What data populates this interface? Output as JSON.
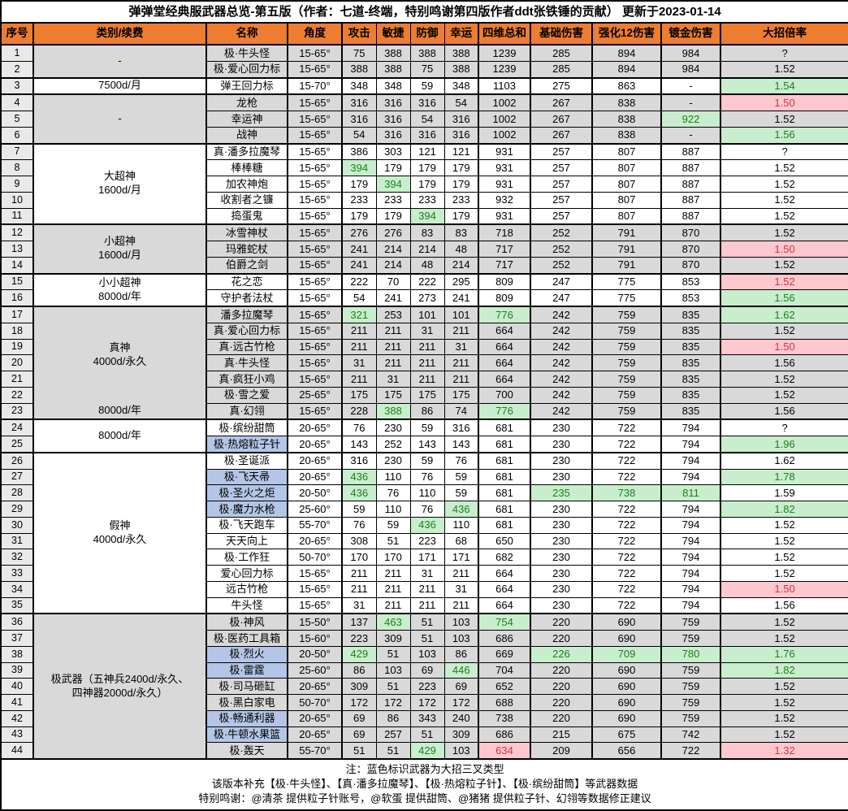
{
  "title": "弹弹堂经典服武器总览-第五版（作者：七道-终端，特别鸣谢第四版作者ddt张铁锤的贡献） 更新于2023-01-14",
  "columns": [
    "序号",
    "类别/续费",
    "名称",
    "角度",
    "攻击",
    "敏捷",
    "防御",
    "幸运",
    "四维总和",
    "基础伤害",
    "强化12伤害",
    "镀金伤害",
    "大招倍率"
  ],
  "colors": {
    "header_orange": "#ED7D31",
    "grey_row": "#D9D9D9",
    "index_column": "#E9E9E9",
    "blue_name_fill": "#B4C6E7",
    "green_fill": "#C9EECD",
    "green_text": "#1E7E1E",
    "pink_fill": "#FFC7CE",
    "pink_text": "#CE3744"
  },
  "groups": [
    {
      "label": "-",
      "span": 2,
      "shade": "grey"
    },
    {
      "label": "7500d/月",
      "span": 1,
      "shade": "white"
    },
    {
      "label": "-",
      "span": 3,
      "shade": "grey"
    },
    {
      "label": "大超神\n1600d/月",
      "span": 5,
      "shade": "white"
    },
    {
      "label": "小超神\n1600d/月",
      "span": 3,
      "shade": "grey"
    },
    {
      "label": "小小超神\n8000d/年",
      "span": 2,
      "shade": "white"
    },
    {
      "label": "真神\n4000d/永久",
      "span": 6,
      "shade": "grey",
      "seamless_bottom": true
    },
    {
      "label": "8000d/年",
      "span": 1,
      "shade": "grey",
      "seamless_top": true
    },
    {
      "label": "8000d/年",
      "span": 2,
      "shade": "white"
    },
    {
      "label": "假神\n4000d/永久",
      "span": 10,
      "shade": "white"
    },
    {
      "label": "极武器（五神兵2400d/永久、\n四神器2000d/永久）",
      "span": 9,
      "shade": "grey"
    }
  ],
  "rows": [
    {
      "no": "1",
      "name": "极·牛头怪",
      "angle": "15-65°",
      "atk": "75",
      "agi": "388",
      "def": "388",
      "luk": "388",
      "sum": "1239",
      "base": "285",
      "enh": "894",
      "gild": "984",
      "ult": "?",
      "hl": {}
    },
    {
      "no": "2",
      "name": "极·爱心回力标",
      "angle": "15-65°",
      "atk": "388",
      "agi": "388",
      "def": "75",
      "luk": "388",
      "sum": "1239",
      "base": "285",
      "enh": "894",
      "gild": "984",
      "ult": "1.52",
      "hl": {}
    },
    {
      "no": "3",
      "name": "弹王回力标",
      "angle": "15-70°",
      "atk": "348",
      "agi": "348",
      "def": "59",
      "luk": "348",
      "sum": "1103",
      "base": "275",
      "enh": "863",
      "gild": "-",
      "ult": "1.54",
      "hl": {
        "ult": "g"
      }
    },
    {
      "no": "4",
      "name": "龙枪",
      "angle": "15-65°",
      "atk": "316",
      "agi": "316",
      "def": "316",
      "luk": "54",
      "sum": "1002",
      "base": "267",
      "enh": "838",
      "gild": "-",
      "ult": "1.50",
      "hl": {
        "ult": "p"
      }
    },
    {
      "no": "5",
      "name": "幸运神",
      "angle": "15-65°",
      "atk": "316",
      "agi": "316",
      "def": "54",
      "luk": "316",
      "sum": "1002",
      "base": "267",
      "enh": "838",
      "gild": "922",
      "ult": "1.52",
      "hl": {
        "gild": "g"
      }
    },
    {
      "no": "6",
      "name": "战神",
      "angle": "15-65°",
      "atk": "54",
      "agi": "316",
      "def": "316",
      "luk": "316",
      "sum": "1002",
      "base": "267",
      "enh": "838",
      "gild": "-",
      "ult": "1.56",
      "hl": {
        "ult": "g"
      }
    },
    {
      "no": "7",
      "name": "真·潘多拉魔琴",
      "angle": "15-65°",
      "atk": "386",
      "agi": "303",
      "def": "121",
      "luk": "121",
      "sum": "931",
      "base": "257",
      "enh": "807",
      "gild": "887",
      "ult": "?",
      "hl": {}
    },
    {
      "no": "8",
      "name": "棒棒糖",
      "angle": "15-65°",
      "atk": "394",
      "agi": "179",
      "def": "179",
      "luk": "179",
      "sum": "931",
      "base": "257",
      "enh": "807",
      "gild": "887",
      "ult": "1.52",
      "hl": {
        "atk": "g"
      }
    },
    {
      "no": "9",
      "name": "加农神炮",
      "angle": "15-65°",
      "atk": "179",
      "agi": "394",
      "def": "179",
      "luk": "179",
      "sum": "931",
      "base": "257",
      "enh": "807",
      "gild": "887",
      "ult": "1.52",
      "hl": {
        "agi": "g"
      }
    },
    {
      "no": "10",
      "name": "收割者之镰",
      "angle": "15-65°",
      "atk": "233",
      "agi": "233",
      "def": "233",
      "luk": "233",
      "sum": "932",
      "base": "257",
      "enh": "807",
      "gild": "887",
      "ult": "1.52",
      "hl": {}
    },
    {
      "no": "11",
      "name": "捣蛋鬼",
      "angle": "15-65°",
      "atk": "179",
      "agi": "179",
      "def": "394",
      "luk": "179",
      "sum": "931",
      "base": "257",
      "enh": "807",
      "gild": "887",
      "ult": "1.52",
      "hl": {
        "def": "g"
      }
    },
    {
      "no": "12",
      "name": "冰雪神杖",
      "angle": "15-65°",
      "atk": "276",
      "agi": "276",
      "def": "83",
      "luk": "83",
      "sum": "718",
      "base": "252",
      "enh": "791",
      "gild": "870",
      "ult": "1.52",
      "hl": {}
    },
    {
      "no": "13",
      "name": "玛雅蛇杖",
      "angle": "15-65°",
      "atk": "241",
      "agi": "214",
      "def": "214",
      "luk": "48",
      "sum": "717",
      "base": "252",
      "enh": "791",
      "gild": "870",
      "ult": "1.50",
      "hl": {
        "ult": "p"
      }
    },
    {
      "no": "14",
      "name": "伯爵之剑",
      "angle": "15-65°",
      "atk": "241",
      "agi": "214",
      "def": "48",
      "luk": "214",
      "sum": "717",
      "base": "252",
      "enh": "791",
      "gild": "870",
      "ult": "1.52",
      "hl": {}
    },
    {
      "no": "15",
      "name": "花之恋",
      "angle": "15-65°",
      "atk": "222",
      "agi": "70",
      "def": "222",
      "luk": "295",
      "sum": "809",
      "base": "247",
      "enh": "775",
      "gild": "853",
      "ult": "1.52",
      "hl": {
        "ult": "p"
      }
    },
    {
      "no": "16",
      "name": "守护者法杖",
      "angle": "15-65°",
      "atk": "54",
      "agi": "241",
      "def": "273",
      "luk": "241",
      "sum": "809",
      "base": "247",
      "enh": "775",
      "gild": "853",
      "ult": "1.56",
      "hl": {
        "ult": "g"
      }
    },
    {
      "no": "17",
      "name": "潘多拉魔琴",
      "angle": "15-65°",
      "atk": "321",
      "agi": "253",
      "def": "101",
      "luk": "101",
      "sum": "776",
      "base": "242",
      "enh": "759",
      "gild": "835",
      "ult": "1.62",
      "hl": {
        "atk": "g",
        "sum": "g",
        "ult": "g"
      }
    },
    {
      "no": "18",
      "name": "真·爱心回力标",
      "angle": "15-65°",
      "atk": "211",
      "agi": "211",
      "def": "31",
      "luk": "211",
      "sum": "664",
      "base": "242",
      "enh": "759",
      "gild": "835",
      "ult": "1.52",
      "hl": {}
    },
    {
      "no": "19",
      "name": "真·远古竹枪",
      "angle": "15-65°",
      "atk": "211",
      "agi": "211",
      "def": "211",
      "luk": "31",
      "sum": "664",
      "base": "242",
      "enh": "759",
      "gild": "835",
      "ult": "1.50",
      "hl": {
        "ult": "p"
      }
    },
    {
      "no": "20",
      "name": "真·牛头怪",
      "angle": "15-65°",
      "atk": "31",
      "agi": "211",
      "def": "211",
      "luk": "211",
      "sum": "664",
      "base": "242",
      "enh": "759",
      "gild": "835",
      "ult": "1.56",
      "hl": {}
    },
    {
      "no": "21",
      "name": "真·疯狂小鸡",
      "angle": "15-65°",
      "atk": "211",
      "agi": "31",
      "def": "211",
      "luk": "211",
      "sum": "664",
      "base": "242",
      "enh": "759",
      "gild": "835",
      "ult": "1.52",
      "hl": {}
    },
    {
      "no": "22",
      "name": "极·雪之爱",
      "angle": "25-65°",
      "atk": "175",
      "agi": "175",
      "def": "175",
      "luk": "175",
      "sum": "700",
      "base": "242",
      "enh": "759",
      "gild": "835",
      "ult": "1.52",
      "hl": {}
    },
    {
      "no": "23",
      "name": "真·幻翎",
      "angle": "15-65°",
      "atk": "228",
      "agi": "388",
      "def": "86",
      "luk": "74",
      "sum": "776",
      "base": "242",
      "enh": "759",
      "gild": "835",
      "ult": "1.56",
      "hl": {
        "agi": "g",
        "sum": "g"
      }
    },
    {
      "no": "24",
      "name": "极·缤纷甜筒",
      "angle": "20-65°",
      "atk": "76",
      "agi": "230",
      "def": "59",
      "luk": "316",
      "sum": "681",
      "base": "230",
      "enh": "722",
      "gild": "794",
      "ult": "?",
      "hl": {}
    },
    {
      "no": "25",
      "name": "极·热熔粒子针",
      "blue": true,
      "angle": "20-65°",
      "atk": "143",
      "agi": "252",
      "def": "143",
      "luk": "143",
      "sum": "681",
      "base": "230",
      "enh": "722",
      "gild": "794",
      "ult": "1.96",
      "hl": {
        "ult": "g"
      }
    },
    {
      "no": "26",
      "name": "极·圣诞派",
      "angle": "20-65°",
      "atk": "316",
      "agi": "230",
      "def": "59",
      "luk": "76",
      "sum": "681",
      "base": "230",
      "enh": "722",
      "gild": "794",
      "ult": "1.62",
      "hl": {}
    },
    {
      "no": "27",
      "name": "极·飞天帚",
      "blue": true,
      "angle": "20-65°",
      "atk": "436",
      "agi": "110",
      "def": "76",
      "luk": "59",
      "sum": "681",
      "base": "230",
      "enh": "722",
      "gild": "794",
      "ult": "1.78",
      "hl": {
        "atk": "g",
        "ult": "g"
      }
    },
    {
      "no": "28",
      "name": "极·圣火之炬",
      "blue": true,
      "angle": "20-50°",
      "atk": "436",
      "agi": "76",
      "def": "110",
      "luk": "59",
      "sum": "681",
      "base": "235",
      "enh": "738",
      "gild": "811",
      "ult": "1.59",
      "hl": {
        "atk": "g",
        "base": "g",
        "enh": "g",
        "gild": "g"
      }
    },
    {
      "no": "29",
      "name": "极·魔力水枪",
      "blue": true,
      "angle": "25-60°",
      "atk": "59",
      "agi": "110",
      "def": "76",
      "luk": "436",
      "sum": "681",
      "base": "230",
      "enh": "722",
      "gild": "794",
      "ult": "1.82",
      "hl": {
        "luk": "g",
        "ult": "g"
      }
    },
    {
      "no": "30",
      "name": "极·飞天跑车",
      "angle": "55-70°",
      "atk": "76",
      "agi": "59",
      "def": "436",
      "luk": "110",
      "sum": "681",
      "base": "230",
      "enh": "722",
      "gild": "794",
      "ult": "1.52",
      "hl": {
        "def": "g"
      }
    },
    {
      "no": "31",
      "name": "天天向上",
      "angle": "20-65°",
      "atk": "308",
      "agi": "51",
      "def": "223",
      "luk": "68",
      "sum": "650",
      "base": "230",
      "enh": "722",
      "gild": "794",
      "ult": "1.52",
      "hl": {}
    },
    {
      "no": "32",
      "name": "极·工作狂",
      "angle": "50-70°",
      "atk": "170",
      "agi": "170",
      "def": "171",
      "luk": "171",
      "sum": "682",
      "base": "230",
      "enh": "722",
      "gild": "794",
      "ult": "1.52",
      "hl": {}
    },
    {
      "no": "33",
      "name": "爱心回力标",
      "angle": "15-65°",
      "atk": "211",
      "agi": "211",
      "def": "31",
      "luk": "211",
      "sum": "664",
      "base": "230",
      "enh": "722",
      "gild": "794",
      "ult": "1.52",
      "hl": {}
    },
    {
      "no": "34",
      "name": "远古竹枪",
      "angle": "15-65°",
      "atk": "211",
      "agi": "211",
      "def": "211",
      "luk": "31",
      "sum": "664",
      "base": "230",
      "enh": "722",
      "gild": "794",
      "ult": "1.50",
      "hl": {
        "ult": "p"
      }
    },
    {
      "no": "35",
      "name": "牛头怪",
      "angle": "15-65°",
      "atk": "31",
      "agi": "211",
      "def": "211",
      "luk": "211",
      "sum": "664",
      "base": "230",
      "enh": "722",
      "gild": "794",
      "ult": "1.56",
      "hl": {}
    },
    {
      "no": "36",
      "name": "极·神风",
      "angle": "15-50°",
      "atk": "137",
      "agi": "463",
      "def": "51",
      "luk": "103",
      "sum": "754",
      "base": "220",
      "enh": "690",
      "gild": "759",
      "ult": "1.52",
      "hl": {
        "agi": "g",
        "sum": "g"
      }
    },
    {
      "no": "37",
      "name": "极·医药工具箱",
      "angle": "15-60°",
      "atk": "223",
      "agi": "309",
      "def": "51",
      "luk": "103",
      "sum": "686",
      "base": "220",
      "enh": "690",
      "gild": "759",
      "ult": "1.52",
      "hl": {}
    },
    {
      "no": "38",
      "name": "极·烈火",
      "blue": true,
      "angle": "20-50°",
      "atk": "429",
      "agi": "51",
      "def": "103",
      "luk": "86",
      "sum": "669",
      "base": "226",
      "enh": "709",
      "gild": "780",
      "ult": "1.76",
      "hl": {
        "atk": "g",
        "base": "g",
        "enh": "g",
        "gild": "g",
        "ult": "g"
      }
    },
    {
      "no": "39",
      "name": "极·雷霆",
      "blue": true,
      "angle": "25-60°",
      "atk": "86",
      "agi": "103",
      "def": "69",
      "luk": "446",
      "sum": "704",
      "base": "220",
      "enh": "690",
      "gild": "759",
      "ult": "1.82",
      "hl": {
        "luk": "g",
        "ult": "g"
      }
    },
    {
      "no": "40",
      "name": "极·司马砸缸",
      "angle": "20-65°",
      "atk": "309",
      "agi": "51",
      "def": "223",
      "luk": "69",
      "sum": "652",
      "base": "220",
      "enh": "690",
      "gild": "759",
      "ult": "1.52",
      "hl": {}
    },
    {
      "no": "41",
      "name": "极·黑白家电",
      "angle": "50-70°",
      "atk": "172",
      "agi": "172",
      "def": "172",
      "luk": "172",
      "sum": "688",
      "base": "220",
      "enh": "690",
      "gild": "759",
      "ult": "1.52",
      "hl": {}
    },
    {
      "no": "42",
      "name": "极·畅通利器",
      "blue": true,
      "angle": "20-65°",
      "atk": "69",
      "agi": "86",
      "def": "343",
      "luk": "240",
      "sum": "738",
      "base": "220",
      "enh": "690",
      "gild": "759",
      "ult": "1.52",
      "hl": {}
    },
    {
      "no": "43",
      "name": "极·牛顿水果篮",
      "blue": true,
      "angle": "20-65°",
      "atk": "69",
      "agi": "257",
      "def": "51",
      "luk": "309",
      "sum": "686",
      "base": "215",
      "enh": "675",
      "gild": "742",
      "ult": "1.52",
      "hl": {}
    },
    {
      "no": "44",
      "name": "极·轰天",
      "angle": "55-70°",
      "atk": "51",
      "agi": "51",
      "def": "429",
      "luk": "103",
      "sum": "634",
      "base": "209",
      "enh": "656",
      "gild": "722",
      "ult": "1.32",
      "hl": {
        "def": "g",
        "sum": "p",
        "ult": "p"
      }
    }
  ],
  "notes": [
    "注：蓝色标识武器为大招三叉类型",
    "该版本补充【极·牛头怪】、【真·潘多拉魔琴】、【极·热熔粒子针】、【极·缤纷甜筒】等武器数据",
    "特别鸣谢：@清茶 提供粒子针账号，@软蛋 提供甜筒、@猪猪 提供粒子针、幻翎等数据修正建议"
  ]
}
